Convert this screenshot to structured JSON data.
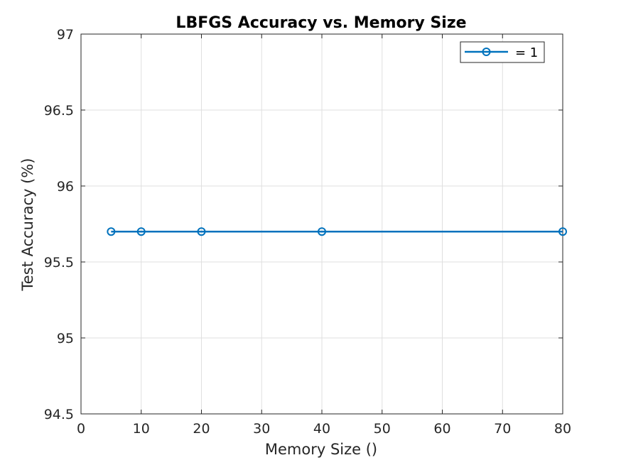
{
  "chart_data": {
    "type": "line",
    "title": "LBFGS Accuracy vs. Memory Size",
    "xlabel": "Memory Size ()",
    "ylabel": "Test Accuracy (%)",
    "xlim": [
      0,
      80
    ],
    "ylim": [
      94.5,
      97
    ],
    "x_ticks": [
      "0",
      "10",
      "20",
      "30",
      "40",
      "50",
      "60",
      "70",
      "80"
    ],
    "y_ticks": [
      "94.5",
      "95",
      "95.5",
      "96",
      "96.5",
      "97"
    ],
    "grid": true,
    "legend_position": "top-right",
    "series": [
      {
        "name": "= 1",
        "color": "#0072BD",
        "marker": "circle",
        "x": [
          5,
          10,
          20,
          40,
          80
        ],
        "y": [
          95.7,
          95.7,
          95.7,
          95.7,
          95.7
        ]
      }
    ]
  }
}
